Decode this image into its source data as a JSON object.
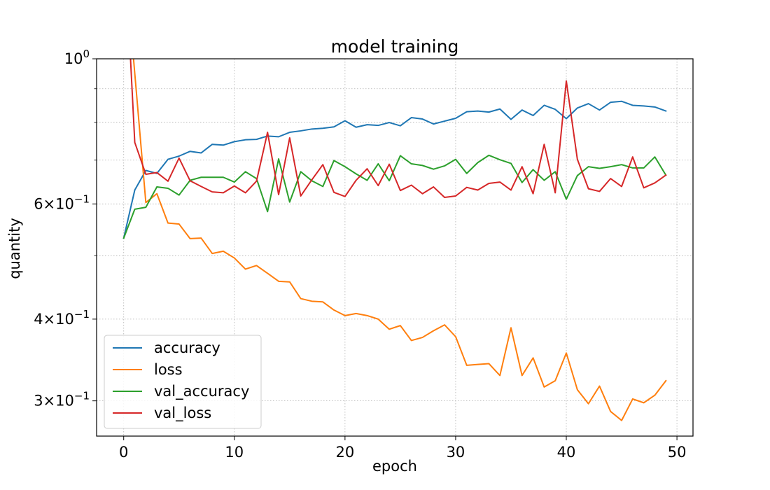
{
  "chart_data": {
    "type": "line",
    "title": "model training",
    "xlabel": "epoch",
    "ylabel": "quantity",
    "yscale": "log",
    "xlim": [
      -2.45,
      51.45
    ],
    "ylim": [
      0.265,
      1.0
    ],
    "grid": true,
    "legend_position": "lower-left",
    "x_ticks": [
      0,
      10,
      20,
      30,
      40,
      50
    ],
    "x_tick_labels": [
      "0",
      "10",
      "20",
      "30",
      "40",
      "50"
    ],
    "y_ticks": [
      0.3,
      0.4,
      0.6,
      1.0
    ],
    "y_tick_labels": [
      {
        "mantissa": "3",
        "exponent": "−1"
      },
      {
        "mantissa": "4",
        "exponent": "−1"
      },
      {
        "mantissa": "6",
        "exponent": "−1"
      },
      {
        "mantissa": "",
        "exponent": "0"
      }
    ],
    "y_minor_ticks": [
      0.5,
      0.7,
      0.8,
      0.9
    ],
    "x": [
      0,
      1,
      2,
      3,
      4,
      5,
      6,
      7,
      8,
      9,
      10,
      11,
      12,
      13,
      14,
      15,
      16,
      17,
      18,
      19,
      20,
      21,
      22,
      23,
      24,
      25,
      26,
      27,
      28,
      29,
      30,
      31,
      32,
      33,
      34,
      35,
      36,
      37,
      38,
      39,
      40,
      41,
      42,
      43,
      44,
      45,
      46,
      47,
      48,
      49
    ],
    "series": [
      {
        "name": "accuracy",
        "color": "#1f77b4",
        "values": [
          0.532,
          0.63,
          0.675,
          0.668,
          0.702,
          0.71,
          0.722,
          0.718,
          0.74,
          0.738,
          0.747,
          0.752,
          0.753,
          0.762,
          0.76,
          0.772,
          0.776,
          0.781,
          0.783,
          0.787,
          0.804,
          0.786,
          0.793,
          0.791,
          0.799,
          0.79,
          0.813,
          0.809,
          0.795,
          0.803,
          0.811,
          0.83,
          0.832,
          0.829,
          0.838,
          0.808,
          0.835,
          0.819,
          0.849,
          0.837,
          0.81,
          0.841,
          0.854,
          0.835,
          0.858,
          0.861,
          0.849,
          0.847,
          0.844,
          0.832
        ]
      },
      {
        "name": "loss",
        "color": "#ff7f0e",
        "values": [
          1.5,
          0.95,
          0.603,
          0.622,
          0.561,
          0.559,
          0.531,
          0.532,
          0.504,
          0.508,
          0.496,
          0.477,
          0.483,
          0.47,
          0.457,
          0.456,
          0.43,
          0.426,
          0.425,
          0.413,
          0.405,
          0.408,
          0.405,
          0.4,
          0.386,
          0.391,
          0.371,
          0.375,
          0.384,
          0.392,
          0.376,
          0.34,
          0.341,
          0.342,
          0.328,
          0.388,
          0.328,
          0.349,
          0.315,
          0.322,
          0.355,
          0.312,
          0.297,
          0.316,
          0.289,
          0.28,
          0.302,
          0.298,
          0.306,
          0.322
        ]
      },
      {
        "name": "val_accuracy",
        "color": "#2ca02c",
        "values": [
          0.532,
          0.589,
          0.593,
          0.637,
          0.634,
          0.619,
          0.652,
          0.659,
          0.659,
          0.659,
          0.648,
          0.672,
          0.656,
          0.584,
          0.703,
          0.604,
          0.672,
          0.651,
          0.638,
          0.699,
          0.684,
          0.667,
          0.652,
          0.691,
          0.651,
          0.711,
          0.691,
          0.687,
          0.678,
          0.686,
          0.702,
          0.668,
          0.694,
          0.712,
          0.701,
          0.692,
          0.647,
          0.677,
          0.652,
          0.672,
          0.61,
          0.663,
          0.684,
          0.68,
          0.684,
          0.689,
          0.681,
          0.681,
          0.708,
          0.664
        ]
      },
      {
        "name": "val_loss",
        "color": "#d62728",
        "values": [
          1.6,
          0.745,
          0.666,
          0.67,
          0.65,
          0.705,
          0.651,
          0.638,
          0.626,
          0.624,
          0.639,
          0.624,
          0.65,
          0.772,
          0.62,
          0.757,
          0.617,
          0.653,
          0.689,
          0.625,
          0.616,
          0.652,
          0.679,
          0.64,
          0.69,
          0.629,
          0.641,
          0.622,
          0.637,
          0.614,
          0.617,
          0.636,
          0.63,
          0.645,
          0.648,
          0.63,
          0.684,
          0.622,
          0.74,
          0.624,
          0.925,
          0.702,
          0.633,
          0.627,
          0.656,
          0.638,
          0.708,
          0.635,
          0.646,
          0.664
        ]
      }
    ]
  }
}
